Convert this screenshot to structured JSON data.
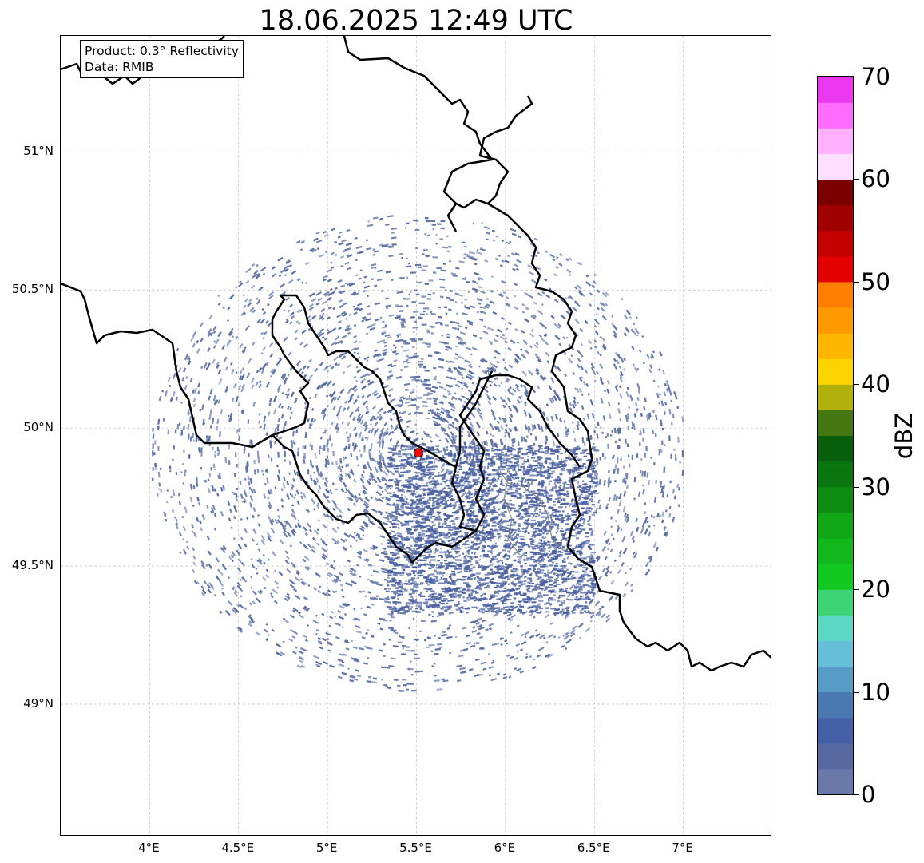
{
  "title": "18.06.2025 12:49 UTC",
  "info": {
    "product": "Product: 0.3° Reflectivity",
    "source": "Data: RMIB"
  },
  "map": {
    "lat_labels": [
      "51°N",
      "50.5°N",
      "50°N",
      "49.5°N",
      "49°N"
    ],
    "lat_values": [
      51,
      50.5,
      50,
      49.5,
      49
    ],
    "lon_labels": [
      "4°E",
      "4.5°E",
      "5°E",
      "5.5°E",
      "6°E",
      "6.5°E",
      "7°E"
    ],
    "lon_values": [
      4,
      4.5,
      5,
      5.5,
      6,
      6.5,
      7
    ],
    "extent": {
      "lon_min": 3.5,
      "lon_max": 7.5,
      "lat_min": 48.52,
      "lat_max": 51.42
    },
    "radar_site": {
      "lon": 5.51,
      "lat": 49.91,
      "color": "#ff0000"
    },
    "echo_color": "#5b6fa3",
    "border_color": "#000000",
    "grid_color": "#b0b0b0"
  },
  "colorbar": {
    "title": "dBZ",
    "ticks": [
      "0",
      "10",
      "20",
      "30",
      "40",
      "50",
      "60",
      "70"
    ],
    "tick_values": [
      0,
      10,
      20,
      30,
      40,
      50,
      60,
      70
    ],
    "min": 0,
    "max": 70,
    "colors": [
      "#6a79aa",
      "#5869a2",
      "#4560a6",
      "#4a79b2",
      "#579cc6",
      "#65bfd9",
      "#5bd6c2",
      "#3dd475",
      "#12c922",
      "#12b81b",
      "#10a615",
      "#0e8c12",
      "#0a7610",
      "#075e0b",
      "#457812",
      "#b0b10b",
      "#fed400",
      "#ffb600",
      "#ff9900",
      "#ff7d00",
      "#e30000",
      "#c50000",
      "#a10000",
      "#7a0000",
      "#ffdfff",
      "#ffb0ff",
      "#ff6cff",
      "#eb38ef"
    ]
  }
}
